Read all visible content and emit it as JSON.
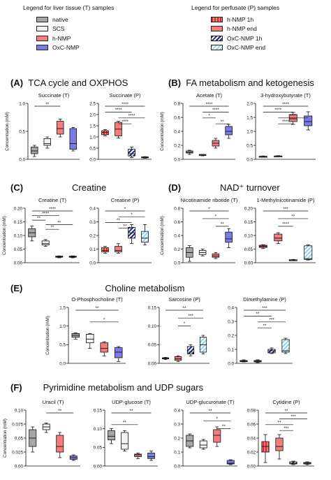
{
  "legend_t": {
    "title": "Legend for liver tissue (T) samples",
    "items": [
      {
        "label": "native",
        "color": "#a6a6a6",
        "pattern": "solid"
      },
      {
        "label": "SCS",
        "color": "#f2f2f2",
        "pattern": "solid"
      },
      {
        "label": "h-NMP",
        "color": "#f47c7c",
        "pattern": "solid"
      },
      {
        "label": "OxC-NMP",
        "color": "#7b7be8",
        "pattern": "solid"
      }
    ]
  },
  "legend_p": {
    "title": "Legend for perfusate (P) samples",
    "items": [
      {
        "label": "h-NMP 1h",
        "color": "#d32f2f",
        "pattern": "dash"
      },
      {
        "label": "h-NMP end",
        "color": "#f47c7c",
        "pattern": "solid"
      },
      {
        "label": "OxC-NMP 1h",
        "color": "#1a237e",
        "pattern": "stripe"
      },
      {
        "label": "OxC-NMP end",
        "color": "#8fd3ec",
        "pattern": "stripe"
      }
    ]
  },
  "sections": [
    {
      "letter": "(A)",
      "title": "TCA cycle and OXPHOS"
    },
    {
      "letter": "(B)",
      "title": "FA metabolism and ketogenesis"
    },
    {
      "letter": "(C)",
      "title": "Creatine"
    },
    {
      "letter": "(D)",
      "title": "NAD⁺ turnover"
    },
    {
      "letter": "(E)",
      "title": "Choline metabolism"
    },
    {
      "letter": "(F)",
      "title": "Pyrimidine metabolism and UDP sugars"
    }
  ],
  "chart_data": [
    {
      "type": "box",
      "title": "Succinate (T)",
      "ylabel": "Concentration (mM)",
      "ylim": [
        0,
        1.0
      ],
      "yticks": [
        "0.0",
        "0.5",
        "1.0"
      ],
      "group": "T",
      "boxes": [
        [
          0.05,
          0.1,
          0.15,
          0.22,
          0.25
        ],
        [
          0.2,
          0.25,
          0.28,
          0.37,
          0.4
        ],
        [
          0.4,
          0.45,
          0.55,
          0.68,
          0.72
        ],
        [
          0.15,
          0.18,
          0.28,
          0.55,
          0.57
        ]
      ],
      "sig": [
        {
          "a": 0,
          "b": 2,
          "label": "**"
        }
      ]
    },
    {
      "type": "box",
      "title": "Succinate (P)",
      "ylim": [
        0,
        2.5
      ],
      "yticks": [
        "0.0",
        "0.5",
        "1.0",
        "1.5",
        "2.0",
        "2.5"
      ],
      "group": "P",
      "boxes": [
        [
          1.05,
          1.1,
          1.2,
          1.28,
          1.33
        ],
        [
          0.95,
          1.05,
          1.35,
          1.65,
          1.7
        ],
        [
          0.08,
          0.15,
          0.25,
          0.45,
          0.55
        ],
        [
          0.05,
          0.07,
          0.09,
          0.11,
          0.12
        ]
      ],
      "sig": [
        {
          "a": 0,
          "b": 3,
          "label": "****"
        },
        {
          "a": 0,
          "b": 2,
          "label": "****"
        },
        {
          "a": 1,
          "b": 3,
          "label": "****"
        },
        {
          "a": 1,
          "b": 2,
          "label": "****"
        }
      ]
    },
    {
      "type": "box",
      "title": "Acetate (T)",
      "ylabel": "Concentration (mM)",
      "ylim": [
        0,
        0.8
      ],
      "yticks": [
        "0.0",
        "0.2",
        "0.4",
        "0.6",
        "0.8"
      ],
      "group": "T",
      "boxes": [
        [
          0.07,
          0.09,
          0.1,
          0.12,
          0.13
        ],
        [
          0.05,
          0.06,
          0.06,
          0.07,
          0.07
        ],
        [
          0.16,
          0.19,
          0.23,
          0.27,
          0.3
        ],
        [
          0.3,
          0.35,
          0.4,
          0.47,
          0.5
        ]
      ],
      "sig": [
        {
          "a": 0,
          "b": 3,
          "label": "****"
        },
        {
          "a": 1,
          "b": 3,
          "label": "****"
        },
        {
          "a": 1,
          "b": 2,
          "label": "*"
        },
        {
          "a": 2,
          "b": 3,
          "label": "**"
        }
      ]
    },
    {
      "type": "box",
      "title": "3-hydroxybutyrate (T)",
      "ylim": [
        0,
        2.0
      ],
      "yticks": [
        "0.0",
        "0.5",
        "1.0",
        "1.5",
        "2.0"
      ],
      "group": "T",
      "boxes": [
        [
          0.08,
          0.09,
          0.1,
          0.11,
          0.12
        ],
        [
          0.09,
          0.1,
          0.11,
          0.12,
          0.13
        ],
        [
          1.25,
          1.35,
          1.45,
          1.6,
          1.68
        ],
        [
          1.05,
          1.2,
          1.35,
          1.55,
          1.7
        ]
      ],
      "sig": [
        {
          "a": 0,
          "b": 3,
          "label": "****"
        },
        {
          "a": 0,
          "b": 2,
          "label": "****"
        },
        {
          "a": 1,
          "b": 3,
          "label": "****"
        },
        {
          "a": 1,
          "b": 2,
          "label": "****"
        }
      ]
    },
    {
      "type": "box",
      "title": "Creatine (T)",
      "ylabel": "Concentration (mM)",
      "ylim": [
        0,
        0.2
      ],
      "yticks": [
        "0.00",
        "0.05",
        "0.10",
        "0.15",
        "0.20"
      ],
      "group": "T",
      "boxes": [
        [
          0.08,
          0.095,
          0.11,
          0.125,
          0.135
        ],
        [
          0.06,
          0.065,
          0.07,
          0.08,
          0.085
        ],
        [
          0.018,
          0.02,
          0.022,
          0.024,
          0.025
        ],
        [
          0.018,
          0.02,
          0.022,
          0.024,
          0.025
        ]
      ],
      "sig": [
        {
          "a": 0,
          "b": 3,
          "label": "****"
        },
        {
          "a": 0,
          "b": 2,
          "label": "****"
        },
        {
          "a": 0,
          "b": 1,
          "label": "**"
        },
        {
          "a": 1,
          "b": 3,
          "label": "**"
        },
        {
          "a": 1,
          "b": 2,
          "label": "**"
        }
      ]
    },
    {
      "type": "box",
      "title": "Creatine (P)",
      "ylim": [
        0,
        0.4
      ],
      "yticks": [
        "0.0",
        "0.1",
        "0.2",
        "0.3",
        "0.4"
      ],
      "group": "P",
      "boxes": [
        [
          0.07,
          0.08,
          0.09,
          0.11,
          0.12
        ],
        [
          0.07,
          0.08,
          0.09,
          0.12,
          0.14
        ],
        [
          0.14,
          0.18,
          0.22,
          0.26,
          0.28
        ],
        [
          0.13,
          0.15,
          0.18,
          0.23,
          0.28
        ]
      ],
      "sig": [
        {
          "a": 0,
          "b": 3,
          "label": "*"
        },
        {
          "a": 1,
          "b": 3,
          "label": "*"
        },
        {
          "a": 0,
          "b": 2,
          "label": "**"
        },
        {
          "a": 1,
          "b": 2,
          "label": "**"
        }
      ]
    },
    {
      "type": "box",
      "title": "Nicotinamide ribotide (T)",
      "ylabel": "Concentration (mM)",
      "ylim": [
        0,
        0.8
      ],
      "yticks": [
        "0.0",
        "0.2",
        "0.4",
        "0.6",
        "0.8"
      ],
      "group": "T",
      "boxes": [
        [
          0.02,
          0.08,
          0.15,
          0.22,
          0.25
        ],
        [
          0.1,
          0.12,
          0.15,
          0.18,
          0.2
        ],
        [
          0.06,
          0.08,
          0.1,
          0.13,
          0.15
        ],
        [
          0.22,
          0.3,
          0.35,
          0.45,
          0.5
        ]
      ],
      "sig": [
        {
          "a": 0,
          "b": 3,
          "label": "*"
        },
        {
          "a": 1,
          "b": 3,
          "label": "*"
        },
        {
          "a": 2,
          "b": 3,
          "label": "**"
        }
      ]
    },
    {
      "type": "box",
      "title": "1-Methylnicotinamide (P)",
      "ylim": [
        0,
        0.2
      ],
      "yticks": [
        "0.00",
        "0.05",
        "0.10",
        "0.15",
        "0.20"
      ],
      "group": "P",
      "boxes": [
        [
          0.052,
          0.056,
          0.06,
          0.064,
          0.066
        ],
        [
          0.07,
          0.08,
          0.09,
          0.105,
          0.11
        ],
        [
          0.008,
          0.009,
          0.01,
          0.011,
          0.012
        ],
        [
          0.01,
          0.012,
          0.015,
          0.062,
          0.065
        ]
      ],
      "sig": [
        {
          "a": 0,
          "b": 3,
          "label": "***"
        },
        {
          "a": 1,
          "b": 3,
          "label": "**"
        },
        {
          "a": 1,
          "b": 2,
          "label": "****"
        }
      ]
    },
    {
      "type": "box",
      "title": "O-Phosphocholine (T)",
      "ylabel": "Concentration (mM)",
      "ylim": [
        0,
        1.5
      ],
      "yticks": [
        "0.0",
        "0.5",
        "1.0",
        "1.5"
      ],
      "group": "T",
      "boxes": [
        [
          0.65,
          0.7,
          0.75,
          0.8,
          0.82
        ],
        [
          0.4,
          0.55,
          0.65,
          0.78,
          0.8
        ],
        [
          0.2,
          0.3,
          0.4,
          0.55,
          0.58
        ],
        [
          0.05,
          0.15,
          0.3,
          0.42,
          0.45
        ]
      ],
      "sig": [
        {
          "a": 0,
          "b": 3,
          "label": "**"
        },
        {
          "a": 1,
          "b": 3,
          "label": "*"
        }
      ]
    },
    {
      "type": "box",
      "title": "Sarcosine (P)",
      "ylim": [
        0,
        0.15
      ],
      "yticks": [
        "0.00",
        "0.05",
        "0.10",
        "0.15"
      ],
      "group": "P",
      "boxes": [
        [
          0.01,
          0.012,
          0.013,
          0.015,
          0.016
        ],
        [
          0.005,
          0.008,
          0.012,
          0.018,
          0.02
        ],
        [
          0.02,
          0.025,
          0.03,
          0.045,
          0.05
        ],
        [
          0.025,
          0.03,
          0.05,
          0.07,
          0.075
        ]
      ],
      "sig": [
        {
          "a": 0,
          "b": 3,
          "label": "**"
        },
        {
          "a": 1,
          "b": 3,
          "label": "***"
        },
        {
          "a": 1,
          "b": 2,
          "label": "*"
        }
      ]
    },
    {
      "type": "box",
      "title": "Dimethylamine (P)",
      "ylim": [
        0,
        0.4
      ],
      "yticks": [
        "0.0",
        "0.1",
        "0.2",
        "0.3",
        "0.4"
      ],
      "group": "P",
      "boxes": [
        [
          0.01,
          0.012,
          0.015,
          0.02,
          0.025
        ],
        [
          0.005,
          0.01,
          0.015,
          0.02,
          0.025
        ],
        [
          0.07,
          0.075,
          0.09,
          0.1,
          0.11
        ],
        [
          0.07,
          0.08,
          0.09,
          0.17,
          0.18
        ]
      ],
      "sig": [
        {
          "a": 0,
          "b": 3,
          "label": "***"
        },
        {
          "a": 0,
          "b": 2,
          "label": "**"
        },
        {
          "a": 1,
          "b": 3,
          "label": "***"
        },
        {
          "a": 1,
          "b": 2,
          "label": "**"
        }
      ]
    },
    {
      "type": "box",
      "title": "Uracil (T)",
      "ylabel": "Concentration (mM)",
      "ylim": [
        0,
        0.1
      ],
      "yticks": [
        "0.00",
        "0.025",
        "0.05",
        "0.075",
        "0.10"
      ],
      "group": "T",
      "boxes": [
        [
          0.025,
          0.035,
          0.05,
          0.065,
          0.07
        ],
        [
          0.06,
          0.065,
          0.07,
          0.075,
          0.077
        ],
        [
          0.015,
          0.025,
          0.035,
          0.055,
          0.06
        ],
        [
          0.01,
          0.012,
          0.015,
          0.018,
          0.02
        ]
      ],
      "sig": [
        {
          "a": 1,
          "b": 3,
          "label": "**"
        }
      ]
    },
    {
      "type": "box",
      "title": "UDP-glucose (T)",
      "ylim": [
        0,
        0.15
      ],
      "yticks": [
        "0.00",
        "0.05",
        "0.10",
        "0.15"
      ],
      "group": "T",
      "boxes": [
        [
          0.06,
          0.07,
          0.08,
          0.095,
          0.1
        ],
        [
          0.04,
          0.045,
          0.06,
          0.09,
          0.095
        ],
        [
          0.02,
          0.025,
          0.03,
          0.032,
          0.035
        ],
        [
          0.015,
          0.02,
          0.025,
          0.035,
          0.04
        ]
      ],
      "sig": [
        {
          "a": 0,
          "b": 3,
          "label": "**"
        },
        {
          "a": 0,
          "b": 2,
          "label": "**"
        }
      ]
    },
    {
      "type": "box",
      "title": "UDP-glucuronate (T)",
      "ylim": [
        0,
        0.4
      ],
      "yticks": [
        "0.0",
        "0.1",
        "0.2",
        "0.3",
        "0.4"
      ],
      "group": "T",
      "boxes": [
        [
          0.13,
          0.14,
          0.18,
          0.22,
          0.23
        ],
        [
          0.12,
          0.13,
          0.15,
          0.18,
          0.19
        ],
        [
          0.14,
          0.17,
          0.22,
          0.26,
          0.28
        ],
        [
          0.01,
          0.015,
          0.02,
          0.04,
          0.045
        ]
      ],
      "sig": [
        {
          "a": 0,
          "b": 3,
          "label": "**"
        },
        {
          "a": 1,
          "b": 3,
          "label": "*"
        },
        {
          "a": 2,
          "b": 3,
          "label": "**"
        }
      ]
    },
    {
      "type": "box",
      "title": "Cytidine (P)",
      "ylim": [
        0,
        0.08
      ],
      "yticks": [
        "0.00",
        "0.02",
        "0.04",
        "0.06",
        "0.08"
      ],
      "group": "P",
      "boxes": [
        [
          0.005,
          0.02,
          0.028,
          0.035,
          0.045
        ],
        [
          0.01,
          0.022,
          0.028,
          0.04,
          0.045
        ],
        [
          0.002,
          0.003,
          0.004,
          0.006,
          0.007
        ],
        [
          0.002,
          0.003,
          0.004,
          0.005,
          0.006
        ]
      ],
      "sig": [
        {
          "a": 0,
          "b": 3,
          "label": "**"
        },
        {
          "a": 1,
          "b": 3,
          "label": "***"
        },
        {
          "a": 0,
          "b": 2,
          "label": "**"
        },
        {
          "a": 1,
          "b": 2,
          "label": "***"
        }
      ]
    }
  ]
}
